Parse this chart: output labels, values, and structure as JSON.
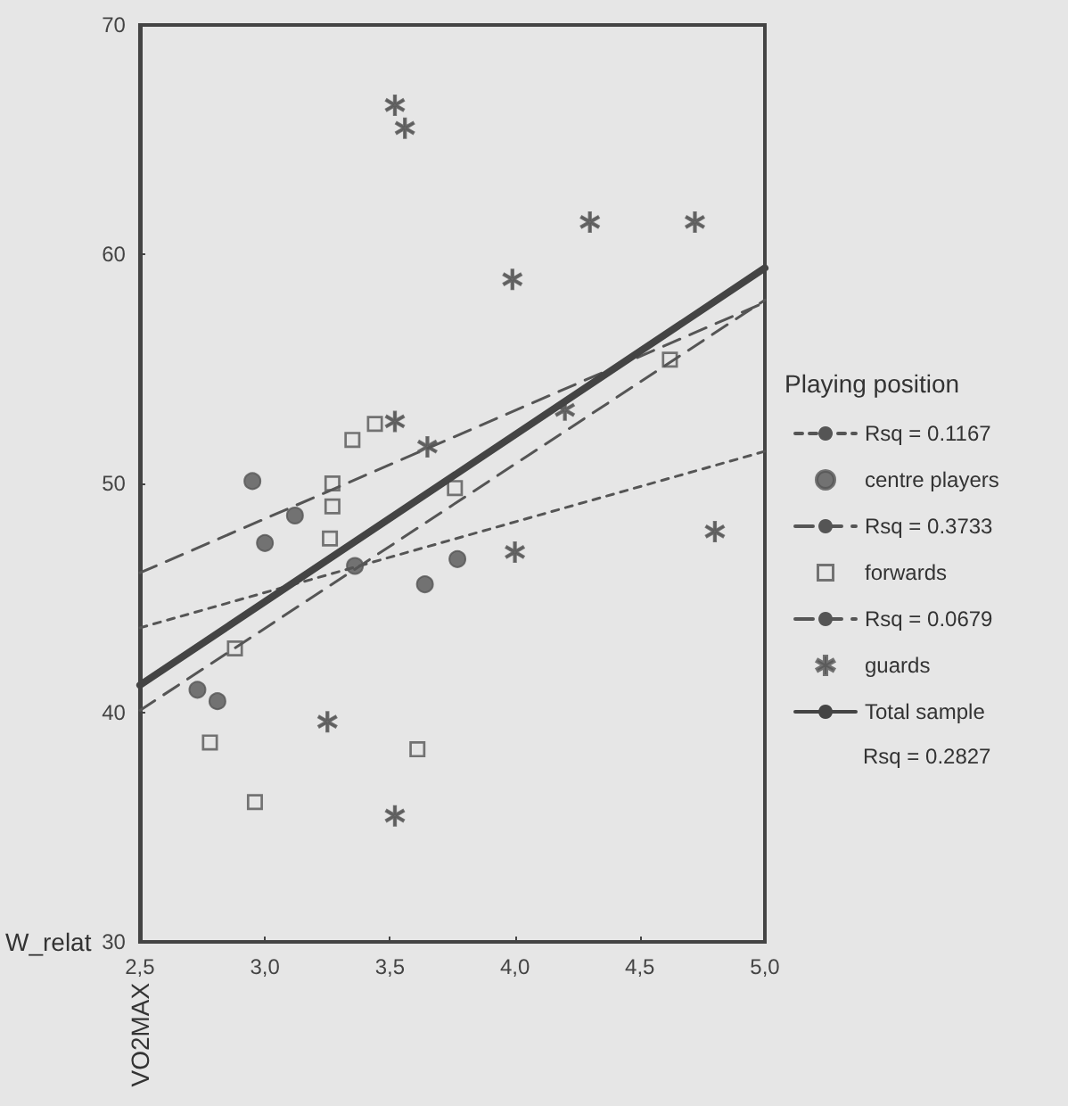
{
  "chart_data": {
    "type": "scatter",
    "xlabel": "W_relat",
    "ylabel": "VO2MAX",
    "legend_title": "Playing position",
    "xlim": [
      2.5,
      5.0
    ],
    "xticks": [
      {
        "value": 2.5,
        "label": "2,5"
      },
      {
        "value": 3.0,
        "label": "3,0"
      },
      {
        "value": 3.5,
        "label": "3,5"
      },
      {
        "value": 4.0,
        "label": "4,0"
      },
      {
        "value": 4.5,
        "label": "4,5"
      },
      {
        "value": 5.0,
        "label": "5,0"
      }
    ],
    "ylim": [
      30,
      70
    ],
    "yticks": [
      30,
      40,
      50,
      60,
      70
    ],
    "grid": false,
    "legend": "right",
    "series": [
      {
        "name": "Rsq = 0.1167",
        "type": "line",
        "color": "#555555",
        "line_style": "dotted",
        "marker": "none",
        "x": [
          2.5,
          5.0
        ],
        "values": [
          43.7,
          51.4
        ]
      },
      {
        "name": "centre players",
        "color": "#555555",
        "marker": "circle",
        "x": [
          2.95,
          3.12,
          3.0,
          3.36,
          3.64,
          3.77,
          2.73,
          2.81
        ],
        "values": [
          50.1,
          48.6,
          47.4,
          46.4,
          45.6,
          46.7,
          41.0,
          40.5
        ]
      },
      {
        "name": "Rsq = 0.3733",
        "type": "line",
        "color": "#555555",
        "line_style": "dashed",
        "marker": "none",
        "x": [
          2.5,
          5.0
        ],
        "values": [
          40.1,
          58.0
        ]
      },
      {
        "name": "forwards",
        "color": "#555555",
        "marker": "square",
        "x": [
          3.35,
          3.44,
          3.27,
          3.27,
          3.26,
          3.76,
          4.62,
          2.88,
          2.78,
          2.96,
          3.61
        ],
        "values": [
          51.9,
          52.6,
          50.0,
          49.0,
          47.6,
          49.8,
          55.4,
          42.8,
          38.7,
          36.1,
          38.4
        ]
      },
      {
        "name": "Rsq = 0.0679",
        "type": "line",
        "color": "#555555",
        "line_style": "dashed",
        "marker": "none",
        "x": [
          2.5,
          5.0
        ],
        "values": [
          46.1,
          57.9
        ]
      },
      {
        "name": "guards",
        "color": "#555555",
        "marker": "star",
        "x": [
          3.52,
          3.56,
          3.52,
          3.65,
          3.99,
          4.3,
          4.72,
          4.2,
          4.8,
          4.0,
          3.25,
          3.52
        ],
        "values": [
          66.5,
          65.5,
          52.7,
          51.6,
          58.9,
          61.4,
          61.4,
          53.2,
          47.9,
          47.0,
          39.6,
          35.5
        ]
      },
      {
        "name": "Total sample",
        "type": "line",
        "color": "#444444",
        "line_style": "solid",
        "marker": "none",
        "x": [
          2.5,
          5.0
        ],
        "values": [
          41.2,
          59.4
        ]
      }
    ],
    "annotations": [
      "Rsq = 0.2827"
    ]
  }
}
